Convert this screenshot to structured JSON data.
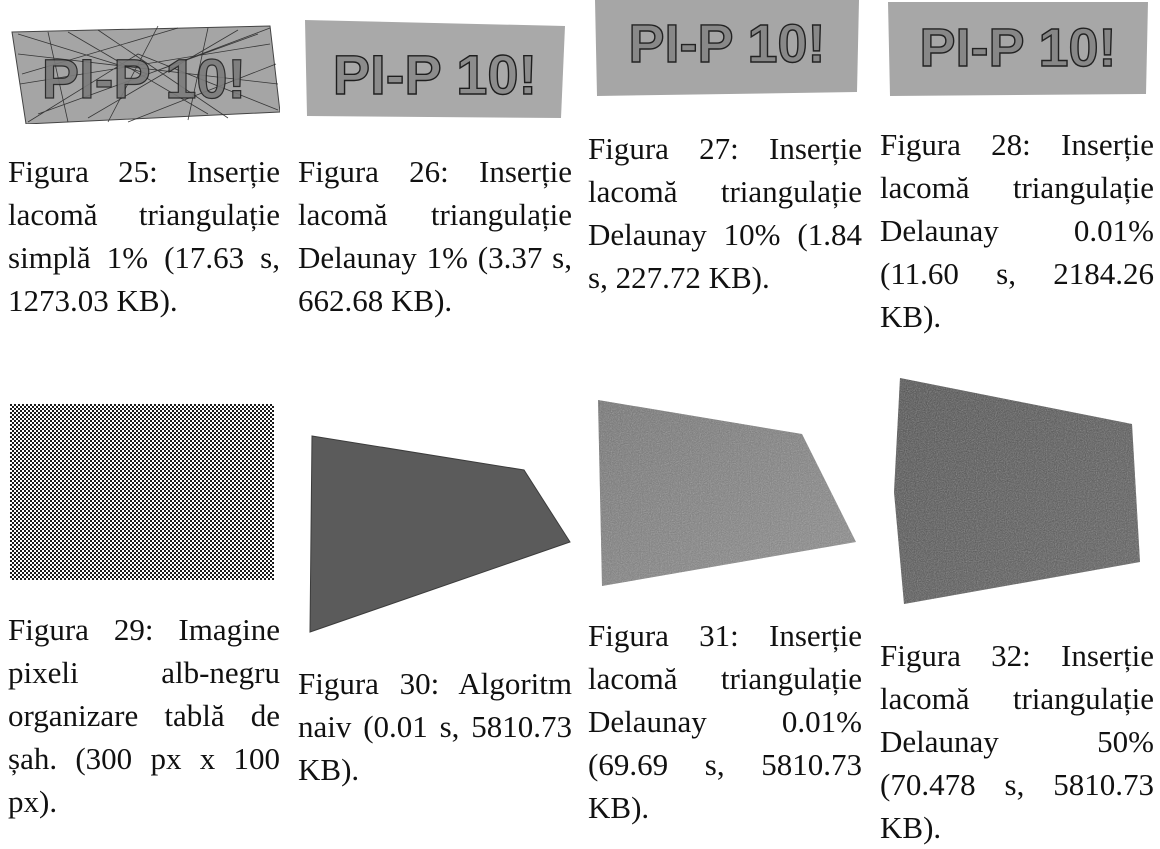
{
  "figures": [
    {
      "caption": "Figura 25: Inserție lacomă triangulație simplă 1% (17.63 s, 1273.03 KB).",
      "render_label": "PI-P 10!"
    },
    {
      "caption": "Figura 26: Inserție lacomă triangulație Delaunay 1% (3.37 s, 662.68 KB).",
      "render_label": "PI-P 10!"
    },
    {
      "caption": "Figura 27: Inserție lacomă triangulație Delaunay 10% (1.84 s, 227.72 KB).",
      "render_label": "PI-P 10!"
    },
    {
      "caption": "Figura 28: Inserție lacomă triangulație Delaunay 0.01% (11.60 s, 2184.26 KB).",
      "render_label": "PI-P 10!"
    },
    {
      "caption": "Figura 29: Imagine pixeli alb-negru organizare tablă de șah. (300 px x 100 px)."
    },
    {
      "caption": "Figura 30: Algoritm naiv (0.01 s, 5810.73 KB)."
    },
    {
      "caption": "Figura 31: Inserție lacomă triangulație Delaunay 0.01% (69.69 s, 5810.73 KB)."
    },
    {
      "caption": "Figura 32: Inserție lacomă triangulație Delaunay 50% (70.478 s, 5810.73 KB)."
    }
  ]
}
